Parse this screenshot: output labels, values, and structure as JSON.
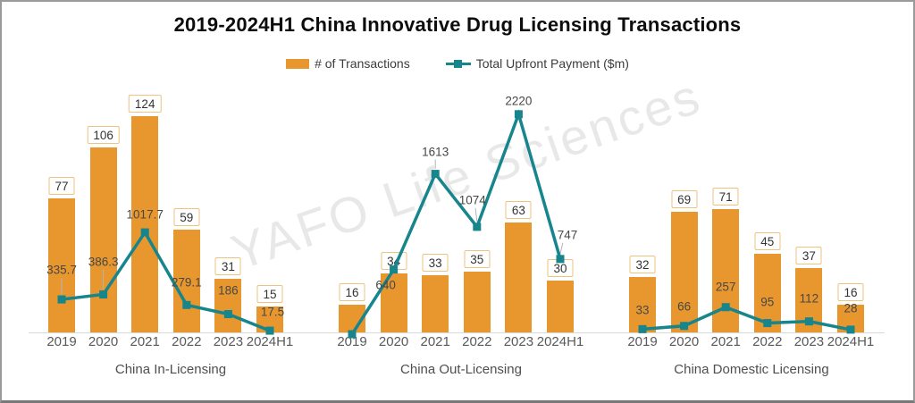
{
  "title": "2019-2024H1 China Innovative Drug Licensing Transactions",
  "watermark": "YAFO Life Sciences",
  "legend": [
    {
      "label": "# of Transactions",
      "type": "bar",
      "color": "#E8972E"
    },
    {
      "label": "Total Upfront Payment ($m)",
      "type": "line",
      "color": "#17858C"
    }
  ],
  "colors": {
    "bar": "#E8972E",
    "line": "#17858C",
    "bar_label_border": "#EEC27F",
    "axis_line": "#D9D9D9",
    "tick_text": "#595959"
  },
  "chart_data": {
    "type": "bar+line",
    "title": "2019-2024H1 China Innovative Drug Licensing Transactions",
    "categories": [
      "2019",
      "2020",
      "2021",
      "2022",
      "2023",
      "2024H1"
    ],
    "series_names": [
      "# of Transactions",
      "Total Upfront Payment ($m)"
    ],
    "grid": false,
    "legend_position": "top",
    "value_labels_shown": true,
    "bar_axis_max_implied": 140,
    "line_axis_max_implied": 2500,
    "panels": [
      {
        "label": "China In-Licensing",
        "transactions": [
          77,
          106,
          124,
          59,
          31,
          15
        ],
        "upfront_payment_m": [
          335.7,
          386.3,
          1017.7,
          279.1,
          186,
          17.5
        ]
      },
      {
        "label": "China Out-Licensing",
        "transactions": [
          16,
          34,
          33,
          35,
          63,
          30
        ],
        "upfront_payment_m": [
          null,
          640,
          1613,
          1074,
          2220,
          747
        ]
      },
      {
        "label": "China Domestic Licensing",
        "transactions": [
          32,
          69,
          71,
          45,
          37,
          16
        ],
        "upfront_payment_m": [
          33,
          66,
          257,
          95,
          112,
          28
        ]
      }
    ]
  }
}
